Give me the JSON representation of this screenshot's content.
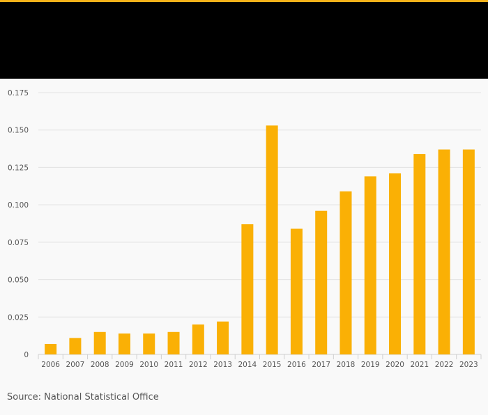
{
  "colors": {
    "accent": "#f5b21a",
    "bar": "#fab005",
    "header_background": "#000000",
    "background": "#f9f9f9",
    "grid": "#e2e2e2",
    "axis": "#cfcfcf",
    "label": "#555555"
  },
  "chart_data": {
    "type": "bar",
    "title": "",
    "xlabel": "",
    "ylabel": "",
    "categories": [
      "2006",
      "2007",
      "2008",
      "2009",
      "2010",
      "2011",
      "2012",
      "2013",
      "2014",
      "2015",
      "2016",
      "2017",
      "2018",
      "2019",
      "2020",
      "2021",
      "2022",
      "2023"
    ],
    "values": [
      0.007,
      0.011,
      0.015,
      0.014,
      0.014,
      0.015,
      0.02,
      0.022,
      0.087,
      0.153,
      0.084,
      0.096,
      0.109,
      0.119,
      0.121,
      0.134,
      0.137,
      0.137
    ],
    "ylim": [
      0,
      0.175
    ],
    "yticks": [
      "0",
      "0.025",
      "0.050",
      "0.075",
      "0.100",
      "0.125",
      "0.150",
      "0.175"
    ],
    "grid": true,
    "legend": "none"
  },
  "footer": {
    "source": "Source: National Statistical Office"
  }
}
